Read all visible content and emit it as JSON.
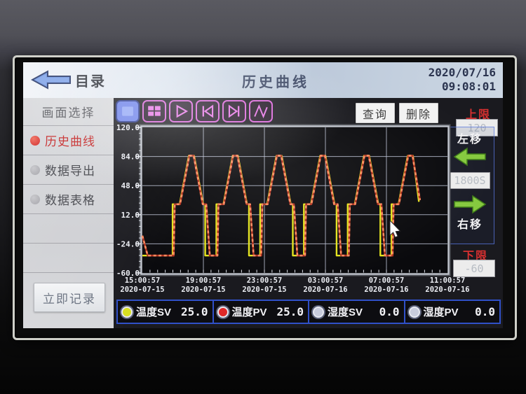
{
  "window": {
    "back_label": "目录",
    "title": "历史曲线",
    "date": "2020/07/16",
    "time": "09:08:01"
  },
  "sidebar": {
    "header": "画面选择",
    "items": [
      {
        "label": "历史曲线",
        "active": true
      },
      {
        "label": "数据导出",
        "active": false
      },
      {
        "label": "数据表格",
        "active": false
      }
    ],
    "record_button": "立即记录"
  },
  "toolbar": {
    "icons": [
      "stop-square-icon",
      "multi-screen-icon",
      "play-icon",
      "skip-to-start-icon",
      "skip-to-end-icon",
      "curve-icon"
    ],
    "query_label": "查询",
    "delete_label": "删除"
  },
  "right_panel": {
    "upper_limit_label": "上限",
    "upper_limit_value": "120",
    "move_left_label": "左移",
    "interval_value": "1800S",
    "move_right_label": "右移",
    "lower_limit_label": "下限",
    "lower_limit_value": "-60"
  },
  "legend": [
    {
      "label": "温度SV",
      "value": "25.0",
      "color": "#d8e020"
    },
    {
      "label": "温度PV",
      "value": "25.0",
      "color": "#e02828"
    },
    {
      "label": "湿度SV",
      "value": "0.0",
      "color": "#c8ccdc"
    },
    {
      "label": "湿度PV",
      "value": "0.0",
      "color": "#c8ccdc"
    }
  ],
  "colors": {
    "accent_pink": "#d863d8",
    "accent_blue": "#5b72e4",
    "arrow_green": "#86c93f",
    "arrow_green_dark": "#3f7d18",
    "limit_red": "#d83030",
    "legend_border": "#3050c8",
    "grid": "#c2c8dc",
    "sv_yellow": "#e4e41c",
    "pv_red": "#e85038",
    "pv_red_dark": "#b0321f",
    "pv_red_light": "#ff8a5e"
  },
  "chart_data": {
    "type": "line",
    "title": "历史曲线",
    "grid": true,
    "y_axis": {
      "min": -60,
      "max": 120,
      "tick_labels": [
        "120.0",
        "84.0",
        "48.0",
        "12.0",
        "-24.0",
        "-60.0"
      ],
      "tick_values": [
        120,
        84,
        48,
        12,
        -24,
        -60
      ]
    },
    "x_axis": {
      "span_hours": 20,
      "tick_hours": [
        0,
        4,
        8,
        12,
        16,
        20
      ],
      "tick_labels": [
        [
          "15:00:57",
          "2020-07-15"
        ],
        [
          "19:00:57",
          "2020-07-15"
        ],
        [
          "23:00:57",
          "2020-07-15"
        ],
        [
          "03:00:57",
          "2020-07-16"
        ],
        [
          "07:00:57",
          "2020-07-16"
        ],
        [
          "11:00:57",
          "2020-07-16"
        ]
      ]
    },
    "series": [
      {
        "key": "temp-sv",
        "name": "温度SV",
        "style": "solid",
        "current_value": 25.0,
        "points": [
          [
            0,
            -38.5
          ],
          [
            1.98,
            -38.5
          ],
          [
            1.98,
            25
          ],
          [
            2.44,
            25
          ],
          [
            3.05,
            85
          ],
          [
            3.39,
            85
          ],
          [
            3.99,
            25
          ],
          [
            4.12,
            25
          ],
          [
            4.12,
            -38.5
          ],
          [
            4.85,
            -38.5
          ],
          [
            4.85,
            25
          ],
          [
            5.31,
            25
          ],
          [
            5.92,
            85
          ],
          [
            6.26,
            85
          ],
          [
            6.86,
            25
          ],
          [
            6.99,
            25
          ],
          [
            6.99,
            -38.5
          ],
          [
            7.72,
            -38.5
          ],
          [
            7.72,
            25
          ],
          [
            8.18,
            25
          ],
          [
            8.79,
            85
          ],
          [
            9.13,
            85
          ],
          [
            9.73,
            25
          ],
          [
            9.86,
            25
          ],
          [
            9.86,
            -38.5
          ],
          [
            10.59,
            -38.5
          ],
          [
            10.59,
            25
          ],
          [
            11.05,
            25
          ],
          [
            11.66,
            85
          ],
          [
            12.0,
            85
          ],
          [
            12.6,
            25
          ],
          [
            12.73,
            25
          ],
          [
            12.73,
            -38.5
          ],
          [
            13.46,
            -38.5
          ],
          [
            13.46,
            25
          ],
          [
            13.92,
            25
          ],
          [
            14.53,
            85
          ],
          [
            14.87,
            85
          ],
          [
            15.47,
            25
          ],
          [
            15.6,
            25
          ],
          [
            15.6,
            -38.5
          ],
          [
            16.33,
            -38.5
          ],
          [
            16.33,
            25
          ],
          [
            16.79,
            25
          ],
          [
            17.4,
            85
          ],
          [
            17.74,
            85
          ],
          [
            18.13,
            28
          ]
        ]
      },
      {
        "key": "temp-pv",
        "name": "温度PV",
        "style": "dashed",
        "current_value": 25.0,
        "points": [
          [
            0,
            -14
          ],
          [
            0.35,
            -38.5
          ],
          [
            2.05,
            -38.5
          ],
          [
            2.12,
            25
          ],
          [
            2.47,
            25
          ],
          [
            3.08,
            85
          ],
          [
            3.36,
            85
          ],
          [
            3.96,
            25
          ],
          [
            4.19,
            25
          ],
          [
            4.42,
            -38.5
          ],
          [
            4.92,
            -38.5
          ],
          [
            4.99,
            25
          ],
          [
            5.34,
            25
          ],
          [
            5.95,
            85
          ],
          [
            6.23,
            85
          ],
          [
            6.83,
            25
          ],
          [
            7.06,
            25
          ],
          [
            7.29,
            -38.5
          ],
          [
            7.79,
            -38.5
          ],
          [
            7.86,
            25
          ],
          [
            8.21,
            25
          ],
          [
            8.82,
            85
          ],
          [
            9.1,
            85
          ],
          [
            9.7,
            25
          ],
          [
            9.93,
            25
          ],
          [
            10.16,
            -38.5
          ],
          [
            10.66,
            -38.5
          ],
          [
            10.73,
            25
          ],
          [
            11.08,
            25
          ],
          [
            11.69,
            85
          ],
          [
            11.97,
            85
          ],
          [
            12.57,
            25
          ],
          [
            12.8,
            25
          ],
          [
            13.03,
            -38.5
          ],
          [
            13.53,
            -38.5
          ],
          [
            13.6,
            25
          ],
          [
            13.95,
            25
          ],
          [
            14.56,
            85
          ],
          [
            14.84,
            85
          ],
          [
            15.44,
            25
          ],
          [
            15.67,
            25
          ],
          [
            15.9,
            -38.5
          ],
          [
            16.4,
            -38.5
          ],
          [
            16.47,
            25
          ],
          [
            16.82,
            25
          ],
          [
            17.43,
            85
          ],
          [
            17.71,
            85
          ],
          [
            18.2,
            30
          ]
        ]
      }
    ]
  }
}
